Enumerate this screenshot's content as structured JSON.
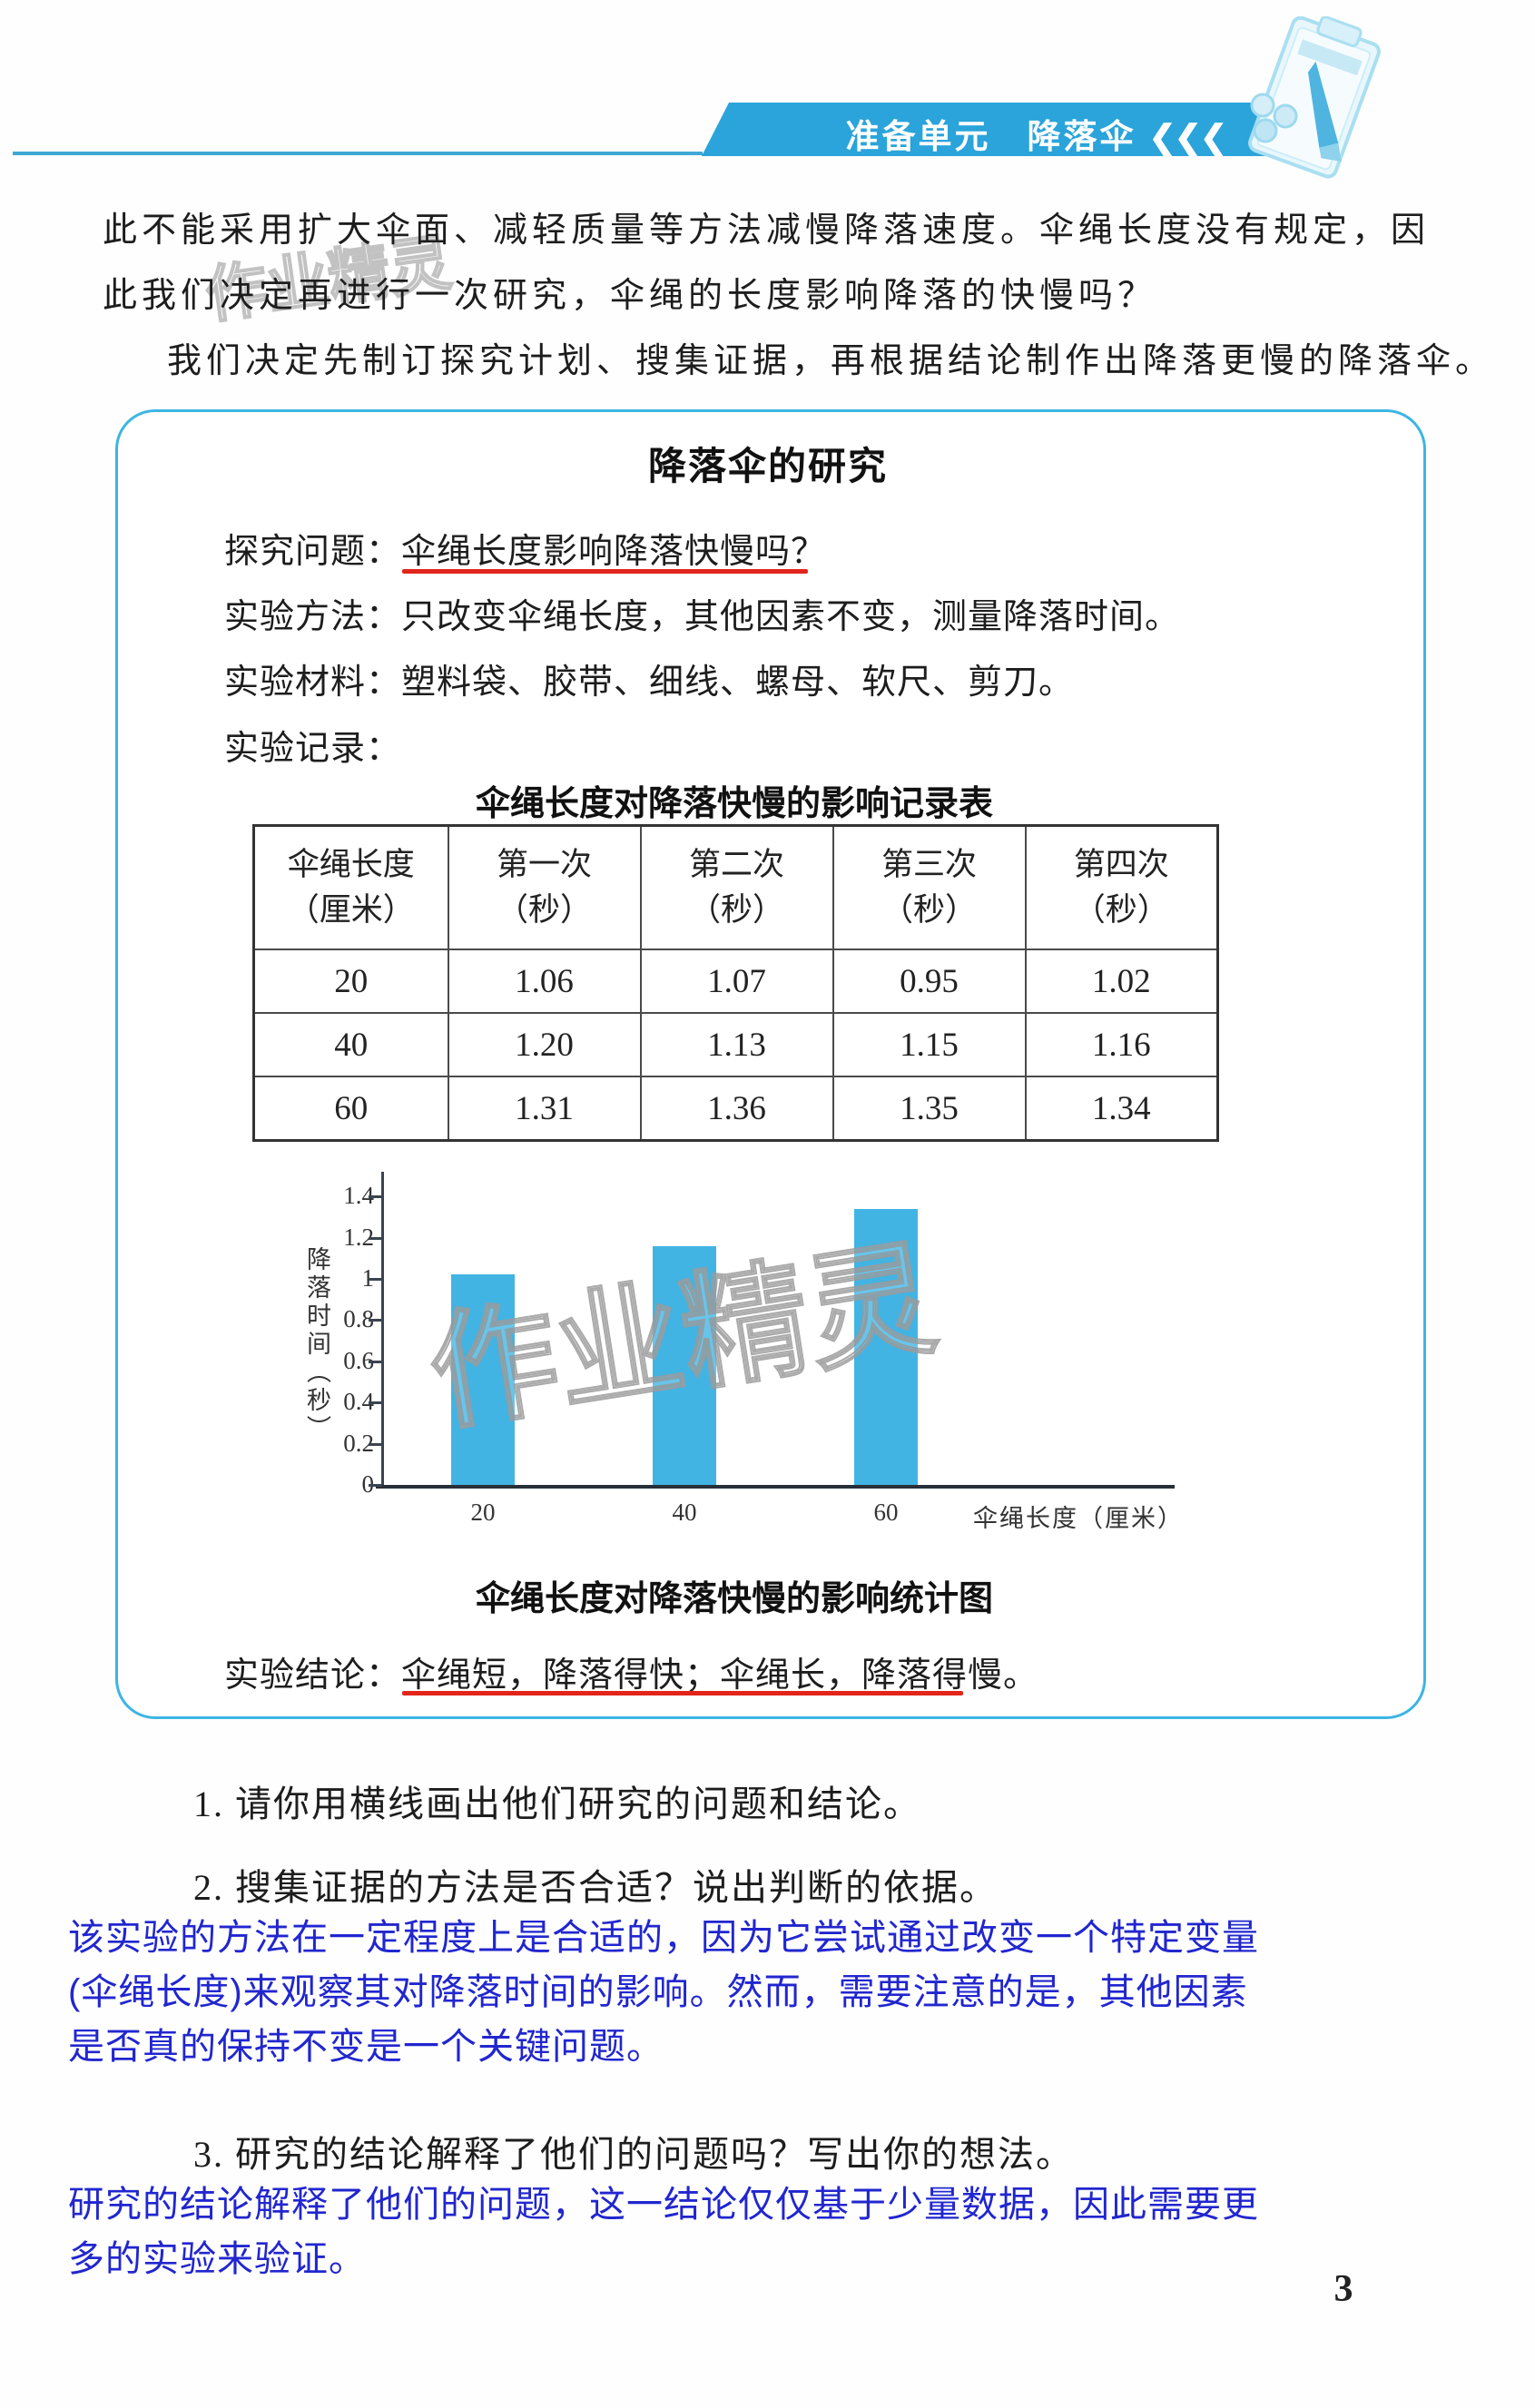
{
  "header": {
    "unit_label": "准备单元",
    "section_title": "降落伞",
    "chevrons": "❮❮❮"
  },
  "page": {
    "watermark": "作业精灵",
    "number": "3"
  },
  "intro": {
    "lines": [
      "此不能采用扩大伞面、减轻质量等方法减慢降落速度。伞绳长度没有规定，因",
      "此我们决定再进行一次研究，伞绳的长度影响降落的快慢吗？",
      "我们决定先制订探究计划、搜集证据，再根据结论制作出降落更慢的降落伞。"
    ]
  },
  "research_box": {
    "title": "降落伞的研究",
    "question_label": "探究问题：",
    "question": "伞绳长度影响降落快慢吗？",
    "method_label": "实验方法：",
    "method": "只改变伞绳长度，其他因素不变，测量降落时间。",
    "materials_label": "实验材料：",
    "materials": "塑料袋、胶带、细线、螺母、软尺、剪刀。",
    "record_label": "实验记录：",
    "table": {
      "title": "伞绳长度对降落快慢的影响记录表",
      "columns": [
        {
          "line1": "伞绳长度",
          "line2": "（厘米）"
        },
        {
          "line1": "第一次",
          "line2": "（秒）"
        },
        {
          "line1": "第二次",
          "line2": "（秒）"
        },
        {
          "line1": "第三次",
          "line2": "（秒）"
        },
        {
          "line1": "第四次",
          "line2": "（秒）"
        }
      ],
      "rows": [
        [
          "20",
          "1.06",
          "1.07",
          "0.95",
          "1.02"
        ],
        [
          "40",
          "1.20",
          "1.13",
          "1.15",
          "1.16"
        ],
        [
          "60",
          "1.31",
          "1.36",
          "1.35",
          "1.34"
        ]
      ]
    },
    "conclusion_label": "实验结论：",
    "conclusion": "伞绳短，降落得快；伞绳长，降落得慢。"
  },
  "chart_data": {
    "type": "bar",
    "title": "伞绳长度对降落快慢的影响统计图",
    "categories": [
      "20",
      "40",
      "60"
    ],
    "values": [
      1.02,
      1.16,
      1.34
    ],
    "xlabel": "伞绳长度（厘米）",
    "ylabel": "降落时间（秒）",
    "yticks": [
      {
        "v": 0,
        "label": "0"
      },
      {
        "v": 0.2,
        "label": "0.2"
      },
      {
        "v": 0.4,
        "label": "0.4"
      },
      {
        "v": 0.6,
        "label": "0.6"
      },
      {
        "v": 0.8,
        "label": "0.8"
      },
      {
        "v": 1,
        "label": "1"
      },
      {
        "v": 1.2,
        "label": "1.2"
      },
      {
        "v": 1.4,
        "label": "1.4"
      }
    ],
    "ylim": [
      0,
      1.5
    ],
    "grid": false,
    "legend": "none",
    "bar_color": "#41b4e4"
  },
  "questions": {
    "q1": "1. 请你用横线画出他们研究的问题和结论。",
    "q2": "2. 搜集证据的方法是否合适？说出判断的依据。",
    "answer2_lines": [
      "该实验的方法在一定程度上是合适的，因为它尝试通过改变一个特定变量",
      "(伞绳长度)来观察其对降落时间的影响。然而，需要注意的是，其他因素",
      "是否真的保持不变是一个关键问题。"
    ],
    "q3": "3. 研究的结论解释了他们的问题吗？写出你的想法。",
    "answer3_lines": [
      "研究的结论解释了他们的问题，这一结论仅仅基于少量数据，因此需要更",
      "多的实验来验证。"
    ]
  },
  "colors": {
    "banner_blue": "#2aa4da",
    "box_border_blue": "#3db5e2",
    "bar_blue": "#41b4e4",
    "underline_red": "#e2251b",
    "answer_blue": "#2126cf"
  }
}
